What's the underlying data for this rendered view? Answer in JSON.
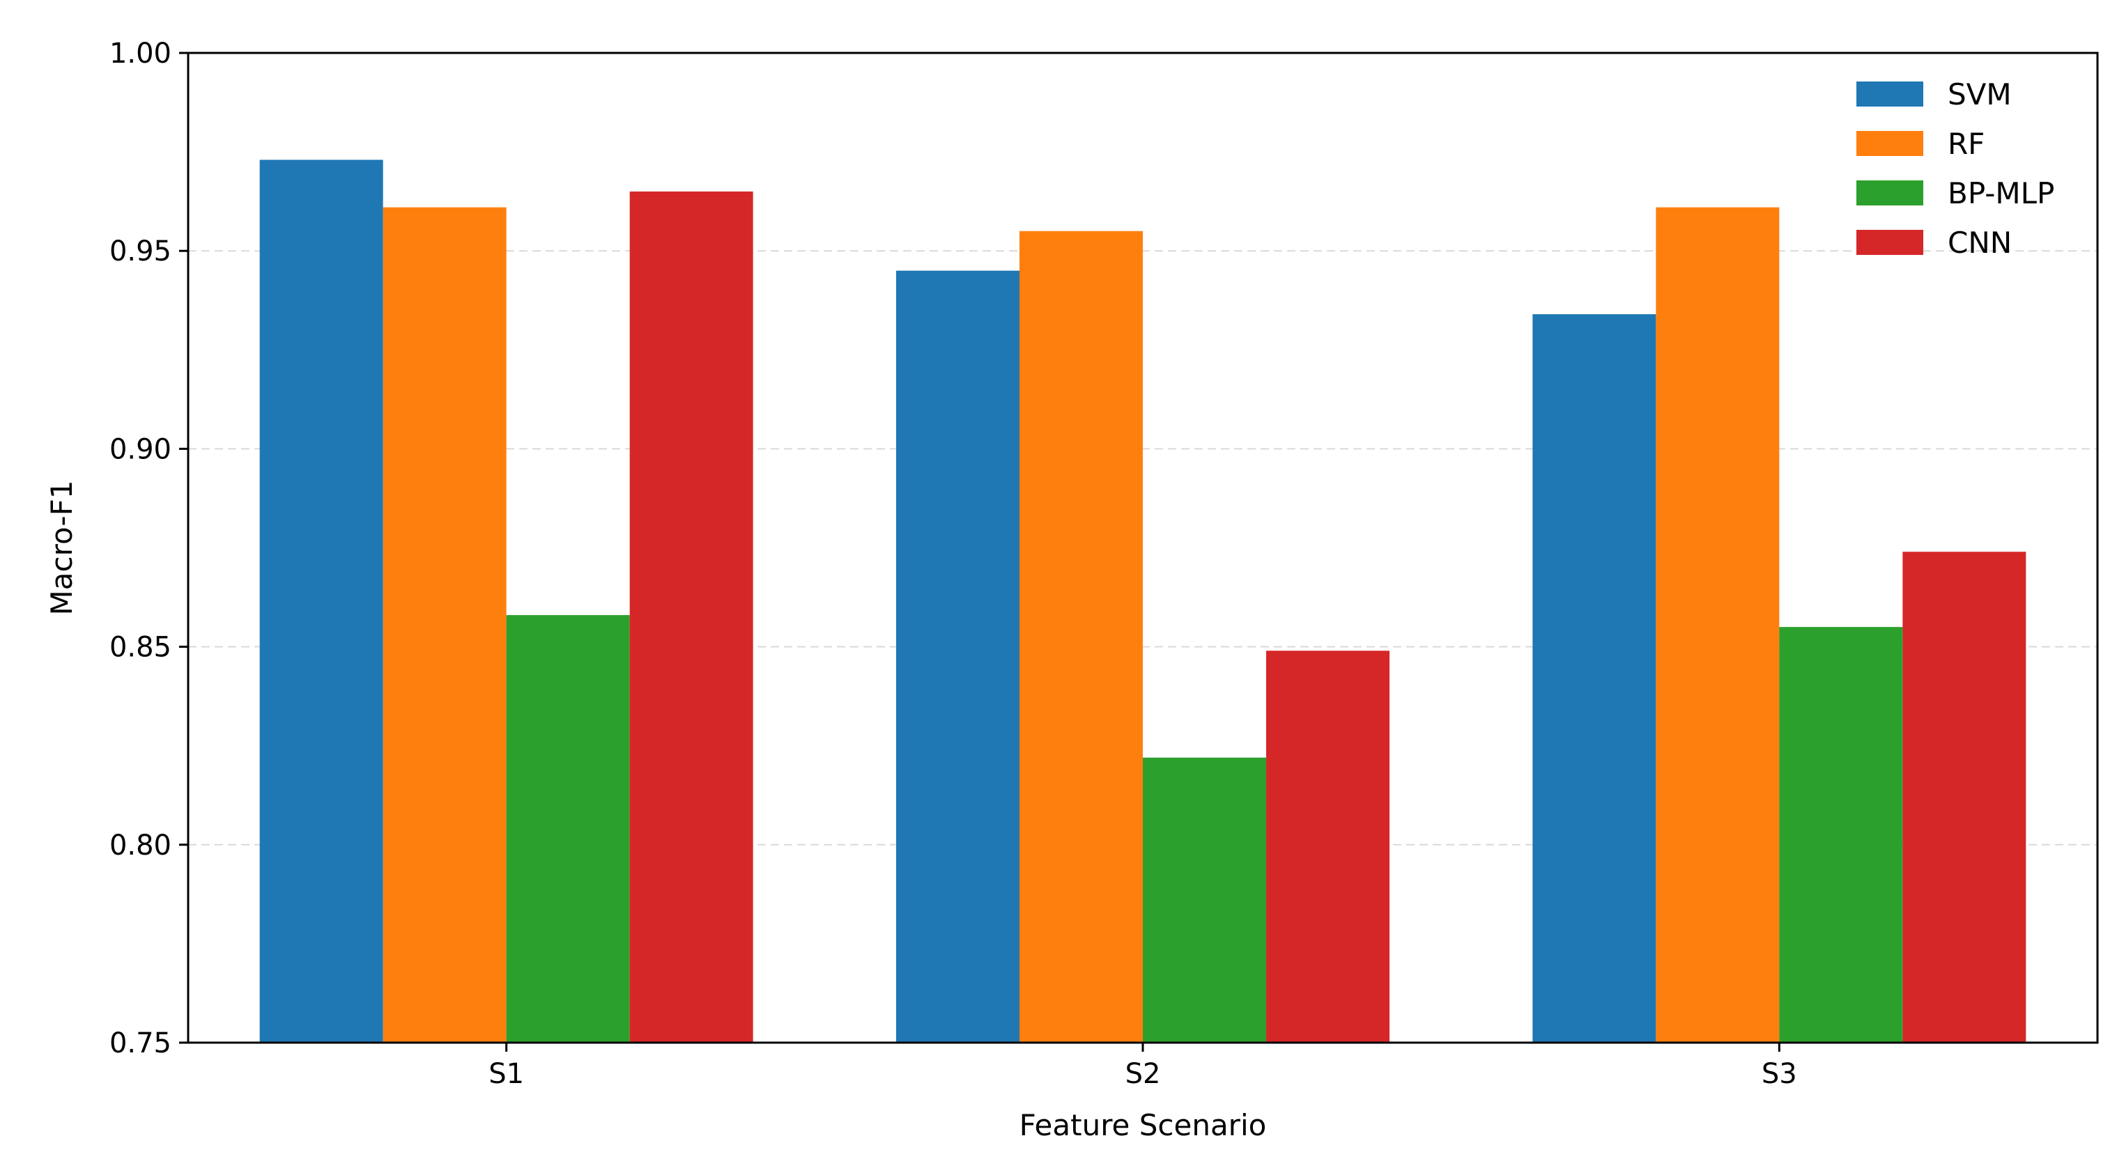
{
  "chart_data": {
    "type": "bar",
    "title": "",
    "xlabel": "Feature Scenario",
    "ylabel": "Macro-F1",
    "categories": [
      "S1",
      "S2",
      "S3"
    ],
    "ylim": [
      0.75,
      1.0
    ],
    "yticks": [
      "0.75",
      "0.80",
      "0.85",
      "0.90",
      "0.95",
      "1.00"
    ],
    "grid": "horizontal dashed",
    "legend_position": "top-right",
    "series": [
      {
        "name": "SVM",
        "color": "#1f77b4",
        "values": [
          0.973,
          0.945,
          0.934
        ]
      },
      {
        "name": "RF",
        "color": "#ff7f0e",
        "values": [
          0.961,
          0.955,
          0.961
        ]
      },
      {
        "name": "BP-MLP",
        "color": "#2ca02c",
        "values": [
          0.858,
          0.822,
          0.855
        ]
      },
      {
        "name": "CNN",
        "color": "#d62728",
        "values": [
          0.965,
          0.849,
          0.874
        ]
      }
    ]
  }
}
